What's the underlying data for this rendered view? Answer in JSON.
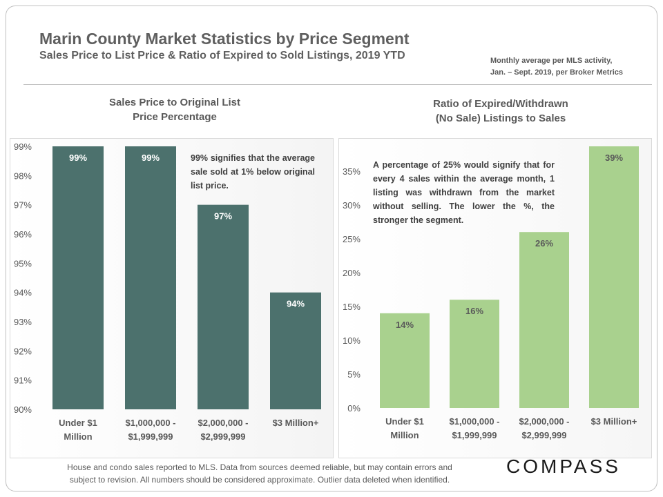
{
  "header": {
    "title": "Marin County Market Statistics by Price Segment",
    "subtitle": "Sales Price to List Price & Ratio of Expired to Sold Listings, 2019 YTD",
    "note_line1": "Monthly average per MLS activity,",
    "note_line2": "Jan. – Sept. 2019, per Broker Metrics"
  },
  "footer": {
    "line1": "House and condo sales reported to MLS. Data from sources deemed reliable, but may contain errors and",
    "line2": "subject to revision. All numbers should be considered approximate. Outlier data deleted when identified."
  },
  "logo": {
    "text": "COMPASS"
  },
  "chart_data": [
    {
      "type": "bar",
      "title_line1": "Sales Price to Original List",
      "title_line2": "Price Percentage",
      "categories": [
        [
          "Under $1",
          "Million"
        ],
        [
          "$1,000,000 -",
          "$1,999,999"
        ],
        [
          "$2,000,000 -",
          "$2,999,999"
        ],
        [
          "$3 Million+"
        ]
      ],
      "values": [
        99,
        99,
        97,
        94
      ],
      "data_labels": [
        "99%",
        "99%",
        "97%",
        "94%"
      ],
      "yticks": [
        "90%",
        "91%",
        "92%",
        "93%",
        "94%",
        "95%",
        "96%",
        "97%",
        "98%",
        "99%"
      ],
      "ylim": [
        90,
        99
      ],
      "bar_color": "#4c716d",
      "label_color": "#ffffff",
      "annotation": "99% signifies that the average sale sold at 1% below original list price."
    },
    {
      "type": "bar",
      "title_line1": "Ratio of Expired/Withdrawn",
      "title_line2": "(No Sale) Listings to Sales",
      "categories": [
        [
          "Under $1",
          "Million"
        ],
        [
          "$1,000,000 -",
          "$1,999,999"
        ],
        [
          "$2,000,000 -",
          "$2,999,999"
        ],
        [
          "$3 Million+"
        ]
      ],
      "values": [
        14,
        16,
        26,
        39
      ],
      "data_labels": [
        "14%",
        "16%",
        "26%",
        "39%"
      ],
      "yticks": [
        "0%",
        "5%",
        "10%",
        "15%",
        "20%",
        "25%",
        "30%",
        "35%"
      ],
      "ylim": [
        0,
        39
      ],
      "bar_color": "#a9d18e",
      "label_color": "#595959",
      "annotation": "A percentage of 25% would signify that for every 4 sales within the average month, 1 listing was withdrawn from the market without selling. The lower the %, the stronger the segment."
    }
  ]
}
